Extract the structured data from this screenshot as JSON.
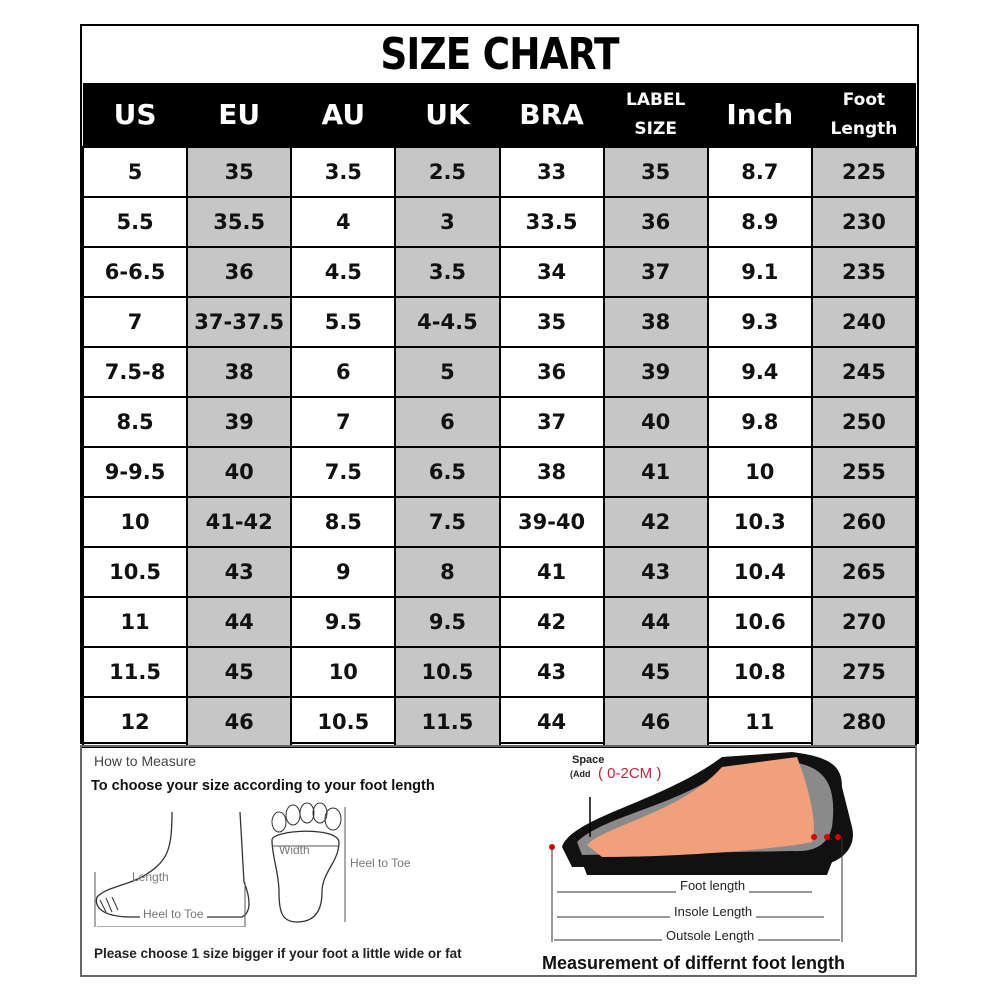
{
  "title": "SIZE CHART",
  "headers": [
    "US",
    "EU",
    "AU",
    "UK",
    "BRA",
    [
      "LABEL",
      "SIZE"
    ],
    "Inch",
    [
      "Foot",
      "Length"
    ]
  ],
  "rows": [
    [
      "5",
      "35",
      "3.5",
      "2.5",
      "33",
      "35",
      "8.7",
      "225"
    ],
    [
      "5.5",
      "35.5",
      "4",
      "3",
      "33.5",
      "36",
      "8.9",
      "230"
    ],
    [
      "6-6.5",
      "36",
      "4.5",
      "3.5",
      "34",
      "37",
      "9.1",
      "235"
    ],
    [
      "7",
      "37-37.5",
      "5.5",
      "4-4.5",
      "35",
      "38",
      "9.3",
      "240"
    ],
    [
      "7.5-8",
      "38",
      "6",
      "5",
      "36",
      "39",
      "9.4",
      "245"
    ],
    [
      "8.5",
      "39",
      "7",
      "6",
      "37",
      "40",
      "9.8",
      "250"
    ],
    [
      "9-9.5",
      "40",
      "7.5",
      "6.5",
      "38",
      "41",
      "10",
      "255"
    ],
    [
      "10",
      "41-42",
      "8.5",
      "7.5",
      "39-40",
      "42",
      "10.3",
      "260"
    ],
    [
      "10.5",
      "43",
      "9",
      "8",
      "41",
      "43",
      "10.4",
      "265"
    ],
    [
      "11",
      "44",
      "9.5",
      "9.5",
      "42",
      "44",
      "10.6",
      "270"
    ],
    [
      "11.5",
      "45",
      "10",
      "10.5",
      "43",
      "45",
      "10.8",
      "275"
    ],
    [
      "12",
      "46",
      "10.5",
      "11.5",
      "44",
      "46",
      "11",
      "280"
    ]
  ],
  "colors": {
    "shaded_column": "#c6c6c6",
    "header_bg": "#000000",
    "accent_red": "#c0263a",
    "foot": "#f0a07a"
  },
  "how_to": {
    "heading": "How to Measure",
    "subheading": "To choose your size according to your foot length",
    "length_label": "Length",
    "heel_to_toe_side": "Heel to Toe",
    "width_label": "Width",
    "heel_to_toe_sole": "Heel to Toe",
    "note": "Please choose 1 size bigger if your foot a little wide or fat"
  },
  "diagram": {
    "space_label": "Space",
    "add_label": "(Add",
    "space_value": "( 0-2CM )",
    "foot_length": "Foot length",
    "insole_length": "Insole Length",
    "outsole_length": "Outsole Length",
    "caption": "Measurement of differnt foot length"
  }
}
